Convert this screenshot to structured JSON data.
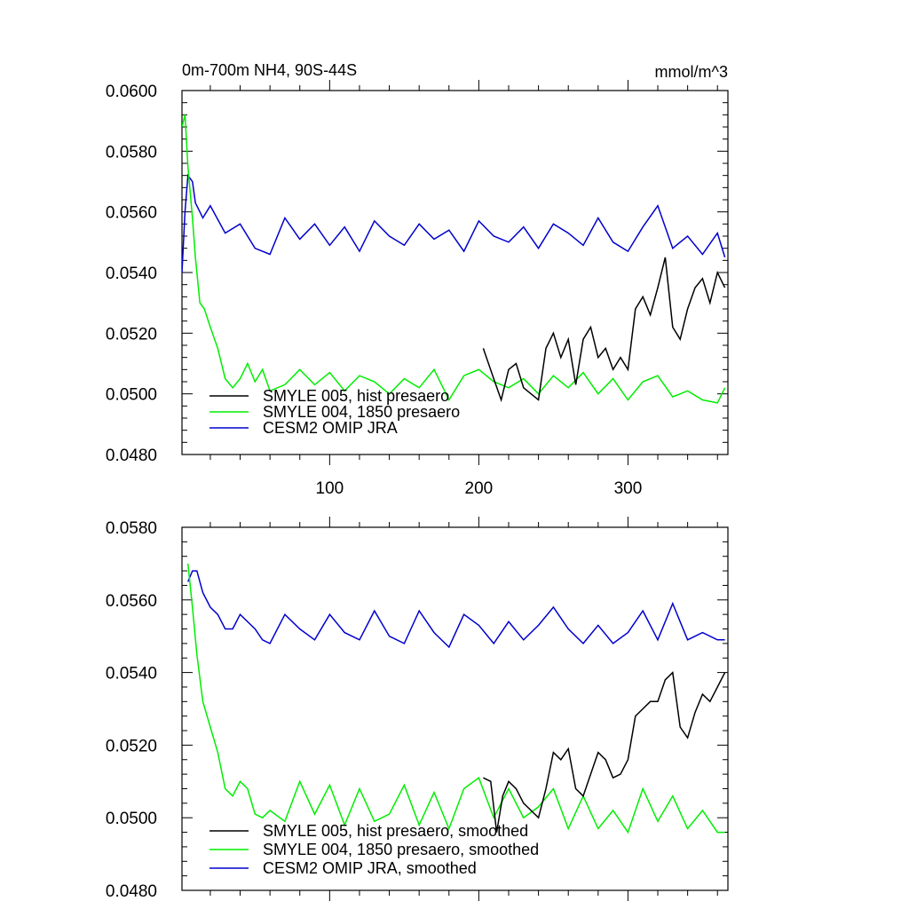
{
  "chart_data": [
    {
      "type": "line",
      "title": "0m-700m NH4, 90S-44S",
      "units": "mmol/m^3",
      "xlabel": "",
      "ylabel": "",
      "xlim": [
        1,
        367
      ],
      "ylim": [
        0.048,
        0.06
      ],
      "x_ticks": [
        100,
        200,
        300
      ],
      "x_tick_labels": [
        "100",
        "200",
        "300"
      ],
      "y_ticks": [
        0.048,
        0.05,
        0.052,
        0.054,
        0.056,
        0.058,
        0.06
      ],
      "y_tick_labels": [
        "0.0480",
        "0.0500",
        "0.0520",
        "0.0540",
        "0.0560",
        "0.0580",
        "0.0600"
      ],
      "legend_position": "lower-left",
      "series": [
        {
          "name": "SMYLE 005, hist presaero",
          "color": "#000000",
          "x": [
            203,
            210,
            215,
            220,
            225,
            230,
            235,
            240,
            245,
            250,
            255,
            260,
            265,
            270,
            275,
            280,
            285,
            290,
            295,
            300,
            305,
            310,
            315,
            320,
            325,
            330,
            335,
            340,
            345,
            350,
            355,
            360,
            365
          ],
          "y": [
            0.0515,
            0.0505,
            0.0498,
            0.0508,
            0.051,
            0.0502,
            0.05,
            0.0498,
            0.0515,
            0.052,
            0.0512,
            0.0518,
            0.0503,
            0.0518,
            0.0522,
            0.0512,
            0.0515,
            0.0508,
            0.0512,
            0.0508,
            0.0528,
            0.0532,
            0.0526,
            0.0535,
            0.0545,
            0.0522,
            0.0518,
            0.0528,
            0.0535,
            0.0538,
            0.053,
            0.054,
            0.0535
          ]
        },
        {
          "name": "SMYLE 004, 1850 presaero",
          "color": "#00ee00",
          "x": [
            1,
            3,
            5,
            8,
            10,
            13,
            16,
            20,
            25,
            30,
            35,
            40,
            45,
            50,
            55,
            60,
            70,
            80,
            90,
            100,
            110,
            120,
            130,
            140,
            150,
            160,
            170,
            180,
            190,
            200,
            210,
            220,
            230,
            240,
            250,
            260,
            270,
            280,
            290,
            300,
            310,
            320,
            330,
            340,
            350,
            360,
            365
          ],
          "y": [
            0.0588,
            0.0592,
            0.0575,
            0.0558,
            0.0545,
            0.053,
            0.0528,
            0.0522,
            0.0515,
            0.0505,
            0.0502,
            0.0505,
            0.051,
            0.0504,
            0.0508,
            0.0501,
            0.0503,
            0.0508,
            0.0503,
            0.0507,
            0.0501,
            0.0506,
            0.0504,
            0.05,
            0.0505,
            0.0502,
            0.0508,
            0.0498,
            0.0506,
            0.0508,
            0.0504,
            0.0502,
            0.0505,
            0.05,
            0.0506,
            0.0502,
            0.0507,
            0.05,
            0.0505,
            0.0498,
            0.0504,
            0.0506,
            0.0499,
            0.0501,
            0.0498,
            0.0497,
            0.0502
          ]
        },
        {
          "name": "CESM2 OMIP JRA",
          "color": "#0000cc",
          "x": [
            1,
            3,
            5,
            8,
            10,
            15,
            20,
            30,
            40,
            50,
            60,
            70,
            80,
            90,
            100,
            110,
            120,
            130,
            140,
            150,
            160,
            170,
            180,
            190,
            200,
            210,
            220,
            230,
            240,
            250,
            260,
            270,
            280,
            290,
            300,
            310,
            320,
            330,
            340,
            350,
            360,
            365
          ],
          "y": [
            0.054,
            0.056,
            0.0572,
            0.057,
            0.0563,
            0.0558,
            0.0562,
            0.0553,
            0.0556,
            0.0548,
            0.0546,
            0.0558,
            0.0551,
            0.0556,
            0.0549,
            0.0555,
            0.0547,
            0.0557,
            0.0552,
            0.0549,
            0.0556,
            0.0551,
            0.0554,
            0.0547,
            0.0557,
            0.0552,
            0.055,
            0.0555,
            0.0548,
            0.0556,
            0.0553,
            0.0549,
            0.0558,
            0.055,
            0.0547,
            0.0555,
            0.0562,
            0.0548,
            0.0552,
            0.0546,
            0.0553,
            0.0545
          ]
        }
      ]
    },
    {
      "type": "line",
      "title": "",
      "xlabel": "",
      "ylabel": "",
      "xlim": [
        1,
        367
      ],
      "ylim": [
        0.048,
        0.058
      ],
      "x_ticks": [
        100,
        200,
        300
      ],
      "x_tick_labels": [
        "",
        "",
        ""
      ],
      "y_ticks": [
        0.048,
        0.05,
        0.052,
        0.054,
        0.056,
        0.058
      ],
      "y_tick_labels": [
        "0.0480",
        "0.0500",
        "0.0520",
        "0.0540",
        "0.0560",
        "0.0580"
      ],
      "legend_position": "lower-left",
      "series": [
        {
          "name": "SMYLE 005, hist presaero, smoothed",
          "color": "#000000",
          "x": [
            203,
            208,
            212,
            216,
            220,
            225,
            230,
            235,
            240,
            245,
            250,
            255,
            260,
            265,
            270,
            275,
            280,
            285,
            290,
            295,
            300,
            305,
            310,
            315,
            320,
            325,
            330,
            335,
            340,
            345,
            350,
            355,
            360,
            365
          ],
          "y": [
            0.0511,
            0.051,
            0.0496,
            0.0506,
            0.051,
            0.0508,
            0.0504,
            0.0502,
            0.05,
            0.0508,
            0.0518,
            0.0516,
            0.0519,
            0.0508,
            0.0506,
            0.0512,
            0.0518,
            0.0516,
            0.0511,
            0.0512,
            0.0516,
            0.0528,
            0.053,
            0.0532,
            0.0532,
            0.0538,
            0.054,
            0.0525,
            0.0522,
            0.0529,
            0.0534,
            0.0532,
            0.0536,
            0.054
          ]
        },
        {
          "name": "SMYLE 004, 1850 presaero, smoothed",
          "color": "#00ee00",
          "x": [
            5,
            8,
            11,
            15,
            20,
            25,
            30,
            35,
            40,
            45,
            50,
            55,
            60,
            70,
            80,
            90,
            100,
            110,
            120,
            130,
            140,
            150,
            160,
            170,
            180,
            190,
            200,
            210,
            220,
            230,
            240,
            250,
            260,
            270,
            280,
            290,
            300,
            310,
            320,
            330,
            340,
            350,
            360,
            365
          ],
          "y": [
            0.057,
            0.0558,
            0.0545,
            0.0532,
            0.0525,
            0.0518,
            0.0508,
            0.0506,
            0.051,
            0.0508,
            0.0501,
            0.05,
            0.0502,
            0.0499,
            0.051,
            0.0501,
            0.0509,
            0.0498,
            0.0508,
            0.0499,
            0.0501,
            0.0509,
            0.0498,
            0.0507,
            0.0497,
            0.0508,
            0.0511,
            0.05,
            0.0508,
            0.05,
            0.0503,
            0.0508,
            0.0497,
            0.0506,
            0.0497,
            0.0502,
            0.0496,
            0.0508,
            0.0499,
            0.0506,
            0.0497,
            0.0502,
            0.0496,
            0.0496
          ]
        },
        {
          "name": "CESM2 OMIP JRA, smoothed",
          "color": "#0000cc",
          "x": [
            5,
            8,
            11,
            15,
            20,
            25,
            30,
            35,
            40,
            50,
            55,
            60,
            70,
            80,
            90,
            100,
            110,
            120,
            130,
            140,
            150,
            160,
            170,
            180,
            190,
            200,
            210,
            220,
            230,
            240,
            250,
            260,
            270,
            280,
            290,
            300,
            310,
            320,
            330,
            340,
            350,
            360,
            365
          ],
          "y": [
            0.0565,
            0.0568,
            0.0568,
            0.0562,
            0.0558,
            0.0556,
            0.0552,
            0.0552,
            0.0556,
            0.0552,
            0.0549,
            0.0548,
            0.0556,
            0.0552,
            0.0549,
            0.0556,
            0.0551,
            0.0549,
            0.0557,
            0.055,
            0.0548,
            0.0557,
            0.0551,
            0.0547,
            0.0556,
            0.0553,
            0.0548,
            0.0554,
            0.0549,
            0.0553,
            0.0558,
            0.0552,
            0.0548,
            0.0553,
            0.0548,
            0.0551,
            0.0557,
            0.0549,
            0.0559,
            0.0549,
            0.0551,
            0.0549,
            0.0549
          ]
        }
      ]
    }
  ]
}
